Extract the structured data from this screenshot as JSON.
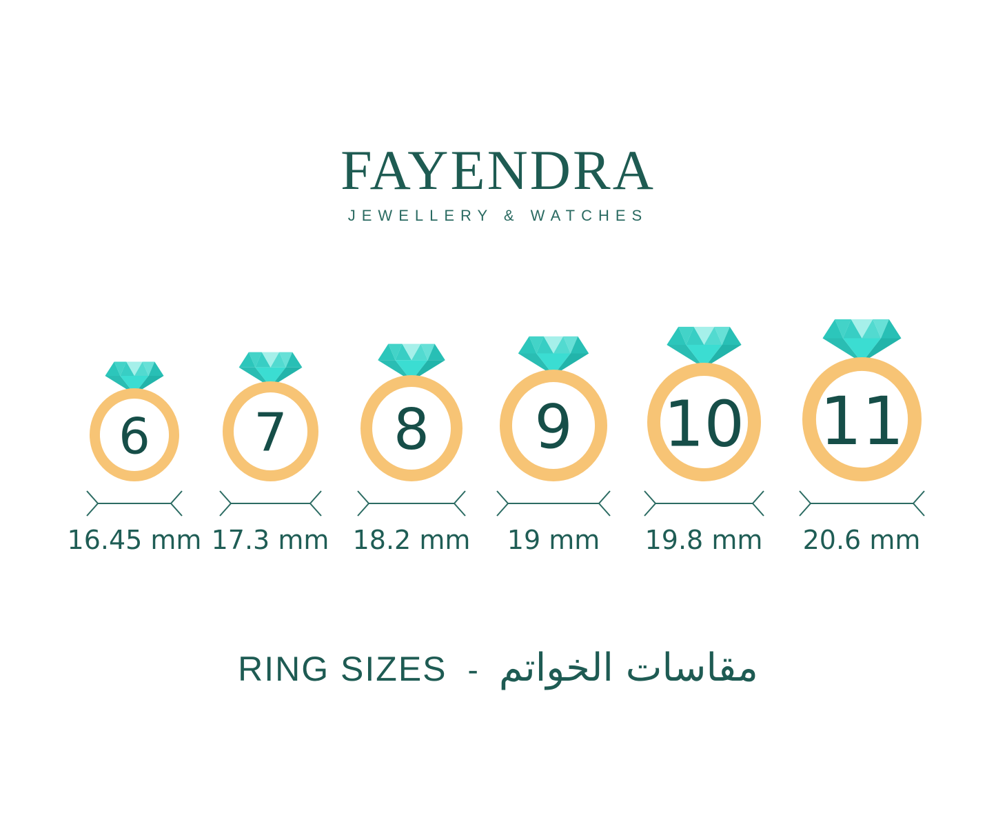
{
  "brand": {
    "name": "FAYENDRA",
    "tagline": "JEWELLERY & WATCHES"
  },
  "rings": [
    {
      "size": "6",
      "diameter": "16.45 mm"
    },
    {
      "size": "7",
      "diameter": "17.3 mm"
    },
    {
      "size": "8",
      "diameter": "18.2 mm"
    },
    {
      "size": "9",
      "diameter": "19 mm"
    },
    {
      "size": "10",
      "diameter": "19.8 mm"
    },
    {
      "size": "11",
      "diameter": "20.6 mm"
    }
  ],
  "caption": {
    "en": "RING SIZES",
    "separator": "-",
    "ar": "مقاسات الخواتم"
  },
  "colors": {
    "brand_teal": "#1E5B52",
    "number_teal": "#164E48",
    "label_teal": "#1F5D55",
    "measure_line": "#2B6B62",
    "band_gold": "#F7C475",
    "diamond_light": "#A6F0EA",
    "diamond_bright": "#3BDDD2",
    "diamond_dark": "#22B4AA"
  }
}
